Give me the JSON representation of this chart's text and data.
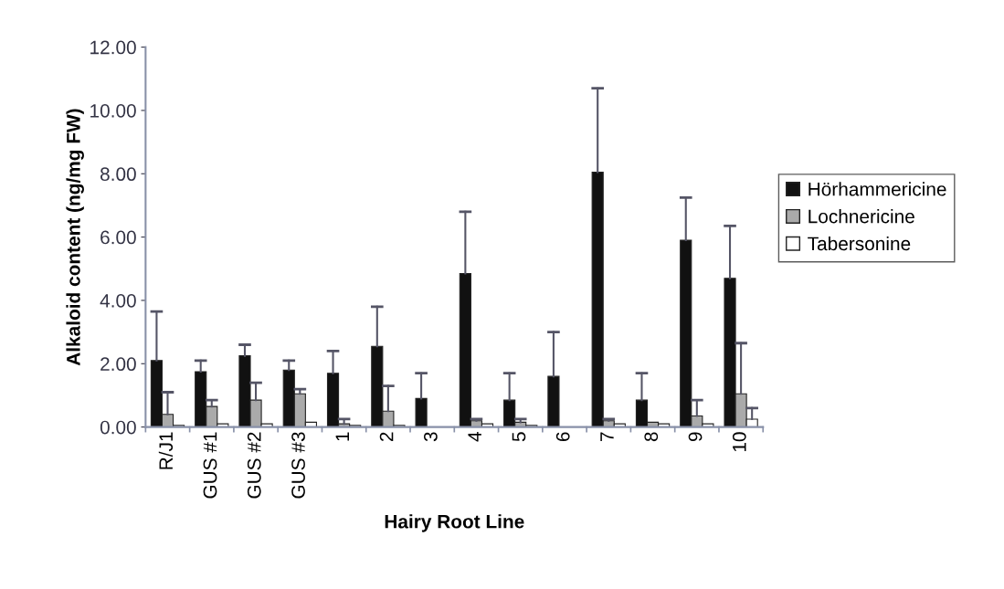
{
  "chart_data": {
    "type": "bar",
    "xlabel": "Hairy Root Line",
    "ylabel": "Alkaloid content (ng/mg FW)",
    "categories": [
      "R/J1",
      "GUS #1",
      "GUS #2",
      "GUS #3",
      "1",
      "2",
      "3",
      "4",
      "5",
      "6",
      "7",
      "8",
      "9",
      "10"
    ],
    "series": [
      {
        "name": "Hörhammericine",
        "color": "#111111",
        "values": [
          2.1,
          1.75,
          2.25,
          1.8,
          1.7,
          2.55,
          0.9,
          4.85,
          0.85,
          1.6,
          8.05,
          0.85,
          5.9,
          4.7
        ],
        "errors": [
          [
            2.1,
            3.65
          ],
          [
            1.75,
            2.1
          ],
          [
            2.25,
            2.6
          ],
          [
            1.8,
            2.1
          ],
          [
            1.7,
            2.4
          ],
          [
            2.55,
            3.8
          ],
          [
            0.9,
            1.7
          ],
          [
            4.85,
            6.8
          ],
          [
            0.85,
            1.7
          ],
          [
            1.6,
            3.0
          ],
          [
            8.05,
            10.7
          ],
          [
            0.85,
            1.7
          ],
          [
            5.9,
            7.25
          ],
          [
            4.7,
            6.35
          ]
        ]
      },
      {
        "name": "Lochnericine",
        "color": "#aaaaaa",
        "values": [
          0.4,
          0.65,
          0.85,
          1.05,
          0.1,
          0.5,
          null,
          0.2,
          0.15,
          null,
          0.2,
          0.15,
          0.35,
          1.05
        ],
        "errors": [
          [
            0.4,
            1.1
          ],
          [
            0.65,
            0.85
          ],
          [
            0.85,
            1.4
          ],
          [
            1.05,
            1.2
          ],
          [
            0.1,
            0.25
          ],
          [
            0.5,
            1.3
          ],
          null,
          [
            0.2,
            0.25
          ],
          [
            0.15,
            0.25
          ],
          null,
          [
            0.2,
            0.25
          ],
          null,
          [
            0.35,
            0.85
          ],
          [
            1.05,
            2.65
          ]
        ]
      },
      {
        "name": "Tabersonine",
        "color": "#ffffff",
        "values": [
          0.05,
          0.1,
          0.1,
          0.15,
          0.05,
          0.05,
          null,
          0.1,
          0.05,
          null,
          0.1,
          0.1,
          0.1,
          0.25
        ],
        "errors": [
          null,
          null,
          null,
          null,
          null,
          null,
          null,
          null,
          null,
          null,
          null,
          null,
          null,
          [
            0.25,
            0.6
          ]
        ]
      }
    ],
    "ylim": [
      0,
      12
    ],
    "yticks": [
      {
        "value": 0,
        "label": "0.00"
      },
      {
        "value": 2,
        "label": "2.00"
      },
      {
        "value": 4,
        "label": "4.00"
      },
      {
        "value": 6,
        "label": "6.00"
      },
      {
        "value": 8,
        "label": "8.00"
      },
      {
        "value": 10,
        "label": "10.00"
      },
      {
        "value": 12,
        "label": "12.00"
      }
    ],
    "legend": "right"
  }
}
